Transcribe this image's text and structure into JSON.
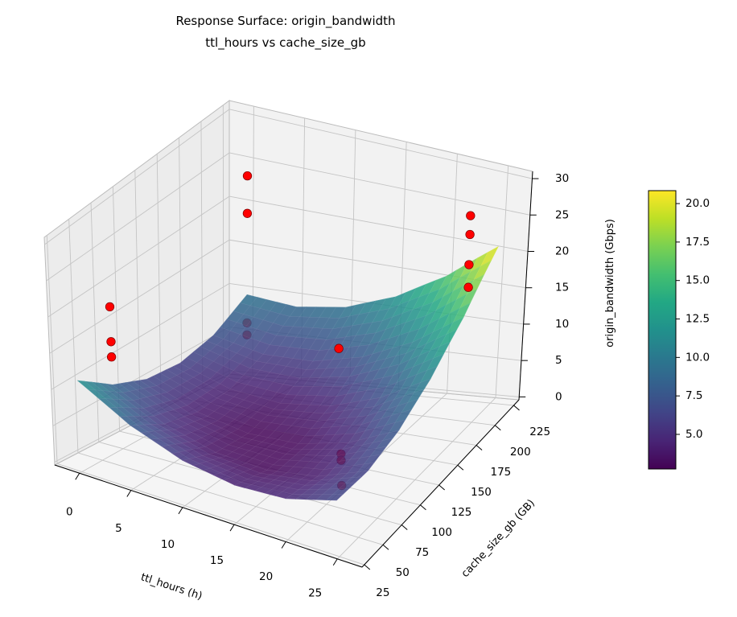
{
  "chart_data": {
    "type": "surface",
    "title": [
      "Response Surface: origin_bandwidth",
      "ttl_hours vs cache_size_gb"
    ],
    "xlabel": "ttl_hours (h)",
    "ylabel": "cache_size_gb (GB)",
    "zlabel": "origin_bandwidth (Gbps)",
    "xlim": [
      -2.4,
      27.4
    ],
    "ylim": [
      22,
      232
    ],
    "zlim": [
      -0.4,
      31
    ],
    "xticks": [
      "0",
      "5",
      "10",
      "15",
      "20",
      "25"
    ],
    "yticks": [
      "25",
      "50",
      "75",
      "100",
      "125",
      "150",
      "175",
      "200",
      "225"
    ],
    "zticks": [
      "0",
      "5",
      "10",
      "15",
      "20",
      "25",
      "30"
    ],
    "grid": true,
    "colormap": "viridis",
    "surface_alpha": 0.85,
    "colorbar": {
      "range": [
        2.75,
        20.84
      ],
      "ticks": [
        "5.0",
        "7.5",
        "10.0",
        "12.5",
        "15.0",
        "17.5",
        "20.0"
      ],
      "placement": "right"
    },
    "surface": {
      "x": [
        0,
        5,
        10,
        15,
        20,
        25
      ],
      "y": [
        25,
        65,
        105,
        145,
        185,
        225
      ],
      "z": [
        [
          12.0,
          8.03,
          5.49,
          4.39,
          4.73,
          6.5
        ],
        [
          8.63,
          5.32,
          3.46,
          3.02,
          4.03,
          6.47
        ],
        [
          6.69,
          4.06,
          2.86,
          3.09,
          4.76,
          7.87
        ],
        [
          6.19,
          4.22,
          3.69,
          4.6,
          6.94,
          10.71
        ],
        [
          7.13,
          5.83,
          5.96,
          7.54,
          10.54,
          14.99
        ],
        [
          9.5,
          8.87,
          9.67,
          11.91,
          15.59,
          20.7
        ]
      ]
    },
    "scatter": {
      "color": "#ff0000",
      "x": [
        0,
        0,
        0,
        0,
        0,
        0,
        0,
        20,
        20,
        20,
        20,
        25,
        25,
        25,
        25
      ],
      "y": [
        65,
        65,
        65,
        225,
        225,
        225,
        225,
        95,
        95,
        95,
        95,
        190,
        190,
        190,
        190
      ],
      "z": [
        18.9,
        14.3,
        12.3,
        23.4,
        19.0,
        6.2,
        4.8,
        17.6,
        4.2,
        3.4,
        0.2,
        28.0,
        25.5,
        21.5,
        18.5
      ]
    }
  }
}
